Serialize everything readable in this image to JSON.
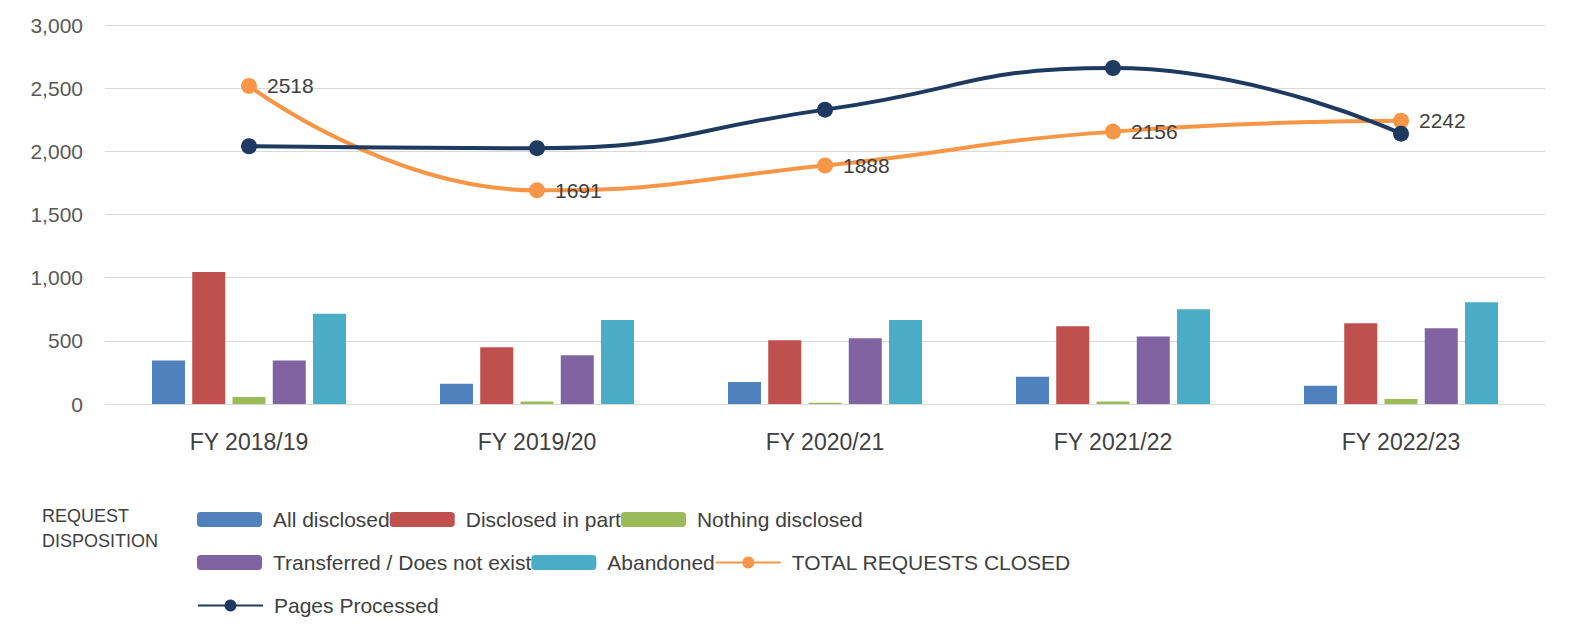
{
  "chart_data": {
    "type": "bar",
    "categories": [
      "FY 2018/19",
      "FY 2019/20",
      "FY 2020/21",
      "FY 2021/22",
      "FY 2022/23"
    ],
    "series": [
      {
        "name": "All disclosed",
        "type": "bar",
        "color": "#4f81bd",
        "values": [
          345,
          160,
          175,
          215,
          145
        ]
      },
      {
        "name": "Disclosed in part",
        "type": "bar",
        "color": "#c0504d",
        "values": [
          1045,
          450,
          505,
          615,
          640
        ]
      },
      {
        "name": "Nothing disclosed",
        "type": "bar",
        "color": "#9bbb59",
        "values": [
          55,
          20,
          10,
          20,
          40
        ]
      },
      {
        "name": "Transferred / Does not exist",
        "type": "bar",
        "color": "#8064a2",
        "values": [
          345,
          385,
          520,
          535,
          600
        ]
      },
      {
        "name": "Abandoned",
        "type": "bar",
        "color": "#4bacc6",
        "values": [
          715,
          665,
          665,
          750,
          805
        ]
      },
      {
        "name": "TOTAL REQUESTS CLOSED",
        "type": "line",
        "color": "#f79646",
        "marker": "circle",
        "line_style": "smooth",
        "data_labels": true,
        "values": [
          2518,
          1691,
          1888,
          2156,
          2242
        ]
      },
      {
        "name": "Pages Processed",
        "type": "line",
        "color": "#1f3a60",
        "marker": "circle",
        "line_style": "smooth",
        "values": [
          2040,
          2025,
          2330,
          2660,
          2140
        ]
      }
    ],
    "legend_title": "REQUEST\nDISPOSITION",
    "legend": "bottom",
    "ylim": [
      0,
      3000
    ],
    "yticks": [
      0,
      500,
      {
        "value": 1000,
        "label": "1,000"
      },
      {
        "value": 1500,
        "label": "1,500"
      },
      {
        "value": 2000,
        "label": "2,000"
      },
      {
        "value": 2500,
        "label": "2,500"
      },
      {
        "value": 3000,
        "label": "3,000"
      }
    ],
    "grid": true
  }
}
